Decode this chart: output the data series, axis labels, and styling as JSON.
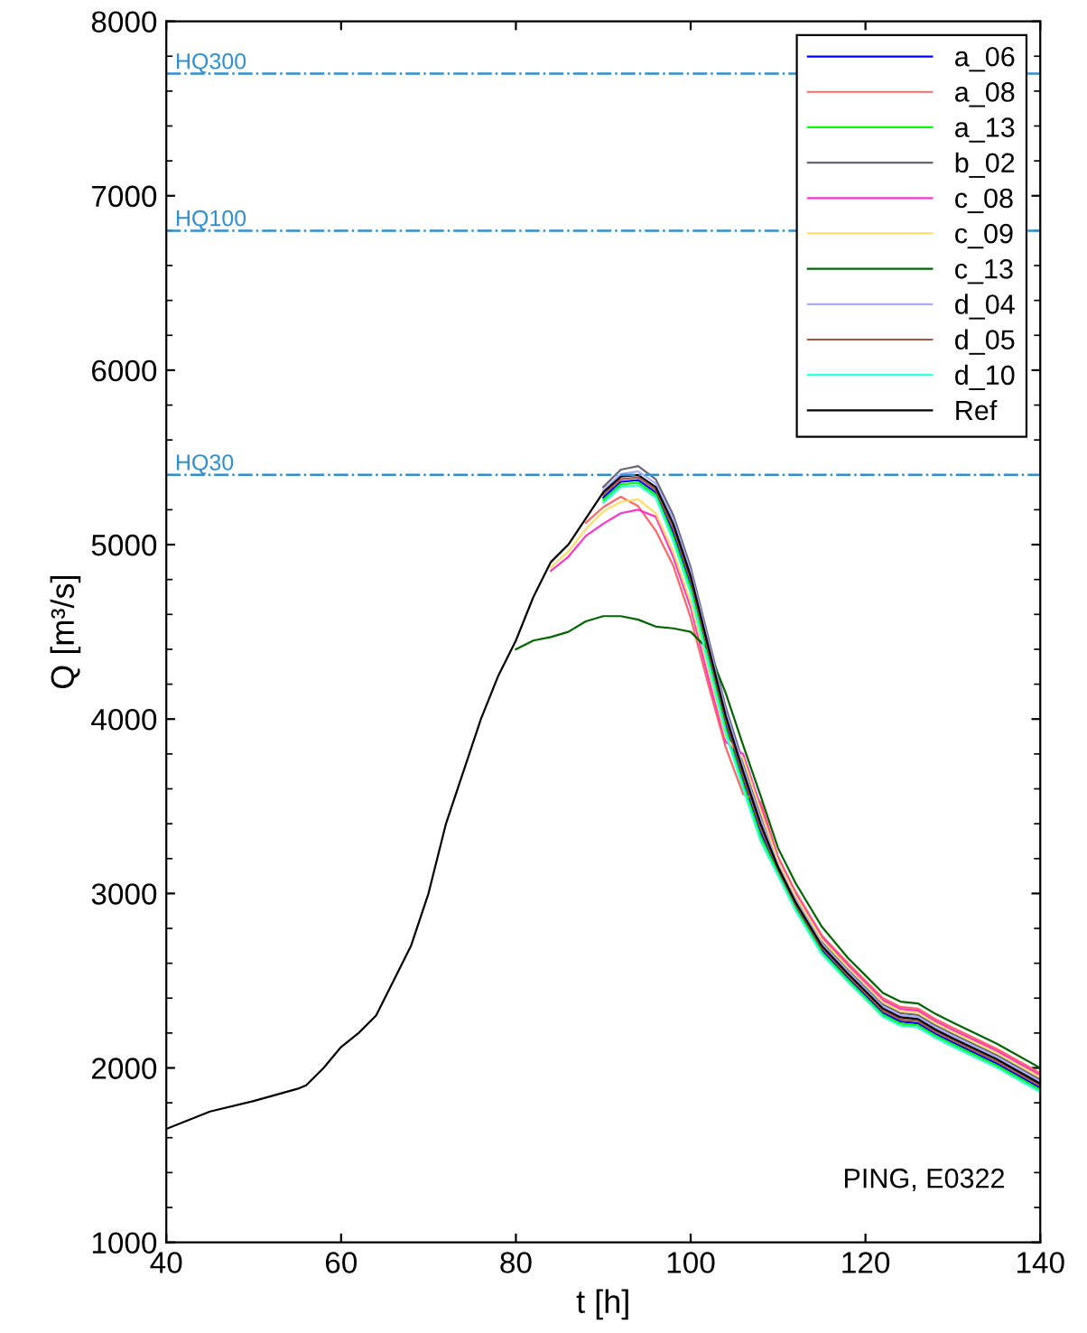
{
  "chart_data": {
    "type": "line",
    "xlabel": "t [h]",
    "ylabel": "Q [m³/s]",
    "x": [
      40,
      45,
      50,
      55,
      56,
      58,
      60,
      62,
      64,
      66,
      68,
      70,
      72,
      74,
      76,
      78,
      80,
      82,
      84,
      86,
      88,
      90,
      92,
      94,
      96,
      98,
      100,
      102,
      104,
      106,
      108,
      110,
      112,
      115,
      118,
      120,
      122,
      124,
      126,
      128,
      130,
      135,
      140
    ],
    "xlim": [
      40,
      140
    ],
    "ylim": [
      1000,
      8000
    ],
    "xticks": [
      40,
      60,
      80,
      100,
      120,
      140
    ],
    "yticks": [
      1000,
      2000,
      3000,
      4000,
      5000,
      6000,
      7000,
      8000
    ],
    "grid": false,
    "legend": "top right",
    "series": [
      {
        "name": "a_06",
        "color": "#0000ff",
        "values": [
          null,
          null,
          null,
          null,
          null,
          null,
          null,
          null,
          null,
          null,
          null,
          null,
          null,
          null,
          null,
          null,
          null,
          null,
          null,
          null,
          null,
          5270,
          5360,
          5370,
          5300,
          5070,
          4770,
          4370,
          3970,
          3650,
          3350,
          3126,
          2926,
          2676,
          2516,
          2416,
          2316,
          2266,
          2256,
          2196,
          2146,
          2026,
          1886
        ]
      },
      {
        "name": "a_08",
        "color": "#ff6666",
        "values": [
          null,
          null,
          null,
          null,
          null,
          null,
          null,
          null,
          null,
          null,
          null,
          null,
          null,
          null,
          null,
          null,
          null,
          null,
          null,
          null,
          5125,
          5215,
          5275,
          5220,
          5080,
          4880,
          4580,
          4200,
          3840,
          3570,
          3525,
          3210,
          3010,
          2760,
          2600,
          2500,
          2400,
          2350,
          2340,
          2280,
          2230,
          2110,
          1970
        ]
      },
      {
        "name": "a_13",
        "color": "#00ff00",
        "values": [
          null,
          null,
          null,
          null,
          null,
          null,
          null,
          null,
          null,
          null,
          null,
          null,
          null,
          null,
          null,
          null,
          null,
          null,
          null,
          null,
          null,
          5255,
          5345,
          5355,
          5285,
          5045,
          4745,
          4345,
          3945,
          3625,
          3325,
          3114,
          2914,
          2664,
          2504,
          2404,
          2304,
          2254,
          2244,
          2184,
          2134,
          2014,
          1874
        ]
      },
      {
        "name": "b_02",
        "color": "#666677",
        "values": [
          null,
          null,
          null,
          null,
          null,
          null,
          null,
          null,
          null,
          null,
          null,
          null,
          null,
          null,
          null,
          null,
          null,
          null,
          null,
          null,
          null,
          5330,
          5430,
          5450,
          5375,
          5170,
          4870,
          4470,
          4070,
          3750,
          3450,
          3174,
          2974,
          2724,
          2564,
          2464,
          2364,
          2314,
          2304,
          2244,
          2194,
          2074,
          1934
        ]
      },
      {
        "name": "c_08",
        "color": "#ff33cc",
        "values": [
          null,
          null,
          null,
          null,
          null,
          null,
          null,
          null,
          null,
          null,
          null,
          null,
          null,
          null,
          null,
          null,
          null,
          null,
          4850,
          4930,
          5050,
          5120,
          5180,
          5200,
          5160,
          4930,
          4640,
          4240,
          3870,
          3800,
          3500,
          3198,
          2998,
          2748,
          2588,
          2488,
          2388,
          2338,
          2328,
          2268,
          2218,
          2098,
          1958
        ]
      },
      {
        "name": "c_09",
        "color": "#ffdd66",
        "values": [
          null,
          null,
          null,
          null,
          null,
          null,
          null,
          null,
          null,
          null,
          null,
          null,
          null,
          null,
          null,
          null,
          null,
          null,
          4870,
          4960,
          5090,
          5190,
          5245,
          5260,
          5180,
          4960,
          4670,
          4290,
          3895,
          3775,
          3475,
          3186,
          2986,
          2736,
          2576,
          2476,
          2376,
          2326,
          2316,
          2256,
          2206,
          2086,
          1946
        ]
      },
      {
        "name": "c_13",
        "color": "#006600",
        "values": [
          null,
          null,
          null,
          null,
          null,
          null,
          null,
          null,
          null,
          null,
          null,
          null,
          null,
          null,
          null,
          null,
          4400,
          4450,
          4470,
          4500,
          4560,
          4590,
          4590,
          4570,
          4530,
          4520,
          4500,
          4400,
          4150,
          3850,
          3560,
          3260,
          3060,
          2810,
          2630,
          2530,
          2430,
          2380,
          2370,
          2310,
          2260,
          2140,
          2000
        ]
      },
      {
        "name": "d_04",
        "color": "#aaaaff",
        "values": [
          null,
          null,
          null,
          null,
          null,
          null,
          null,
          null,
          null,
          null,
          null,
          null,
          null,
          null,
          null,
          null,
          null,
          null,
          null,
          null,
          null,
          5310,
          5405,
          5420,
          5350,
          5145,
          4845,
          4445,
          4045,
          3725,
          3425,
          3162,
          2962,
          2712,
          2552,
          2452,
          2352,
          2302,
          2292,
          2232,
          2182,
          2062,
          1922
        ]
      },
      {
        "name": "d_05",
        "color": "#aa5544",
        "values": [
          null,
          null,
          null,
          null,
          null,
          null,
          null,
          null,
          null,
          null,
          null,
          null,
          null,
          null,
          null,
          null,
          null,
          null,
          null,
          null,
          null,
          5285,
          5375,
          5385,
          5315,
          5095,
          4795,
          4395,
          3995,
          3675,
          3375,
          3138,
          2938,
          2688,
          2528,
          2428,
          2328,
          2278,
          2268,
          2208,
          2158,
          2038,
          1898
        ]
      },
      {
        "name": "d_10",
        "color": "#33ffdd",
        "values": [
          null,
          null,
          null,
          null,
          null,
          null,
          null,
          null,
          null,
          null,
          null,
          null,
          null,
          null,
          null,
          null,
          null,
          null,
          null,
          null,
          null,
          5240,
          5330,
          5340,
          5270,
          5020,
          4720,
          4320,
          3920,
          3600,
          3300,
          3102,
          2902,
          2652,
          2492,
          2392,
          2292,
          2242,
          2232,
          2172,
          2122,
          2002,
          1862
        ]
      },
      {
        "name": "Ref",
        "color": "#000000",
        "values": [
          1650,
          1750,
          1810,
          1880,
          1900,
          2000,
          2120,
          2200,
          2300,
          2500,
          2700,
          3000,
          3400,
          3700,
          4000,
          4250,
          4450,
          4700,
          4900,
          5000,
          5150,
          5300,
          5390,
          5400,
          5330,
          5120,
          4820,
          4420,
          4020,
          3700,
          3400,
          3150,
          2950,
          2700,
          2540,
          2440,
          2340,
          2290,
          2280,
          2220,
          2170,
          2050,
          1910
        ]
      }
    ],
    "ref_lines": [
      {
        "axis": "y",
        "value": 7700,
        "label": "HQ300",
        "color": "#2e8fd0",
        "line_style": "dashdot"
      },
      {
        "axis": "y",
        "value": 6800,
        "label": "HQ100",
        "color": "#2e8fd0",
        "line_style": "dashdot"
      },
      {
        "axis": "y",
        "value": 5400,
        "label": "HQ30",
        "color": "#2e8fd0",
        "line_style": "dashdot"
      }
    ],
    "annotations": [
      "PING, E0322"
    ]
  }
}
